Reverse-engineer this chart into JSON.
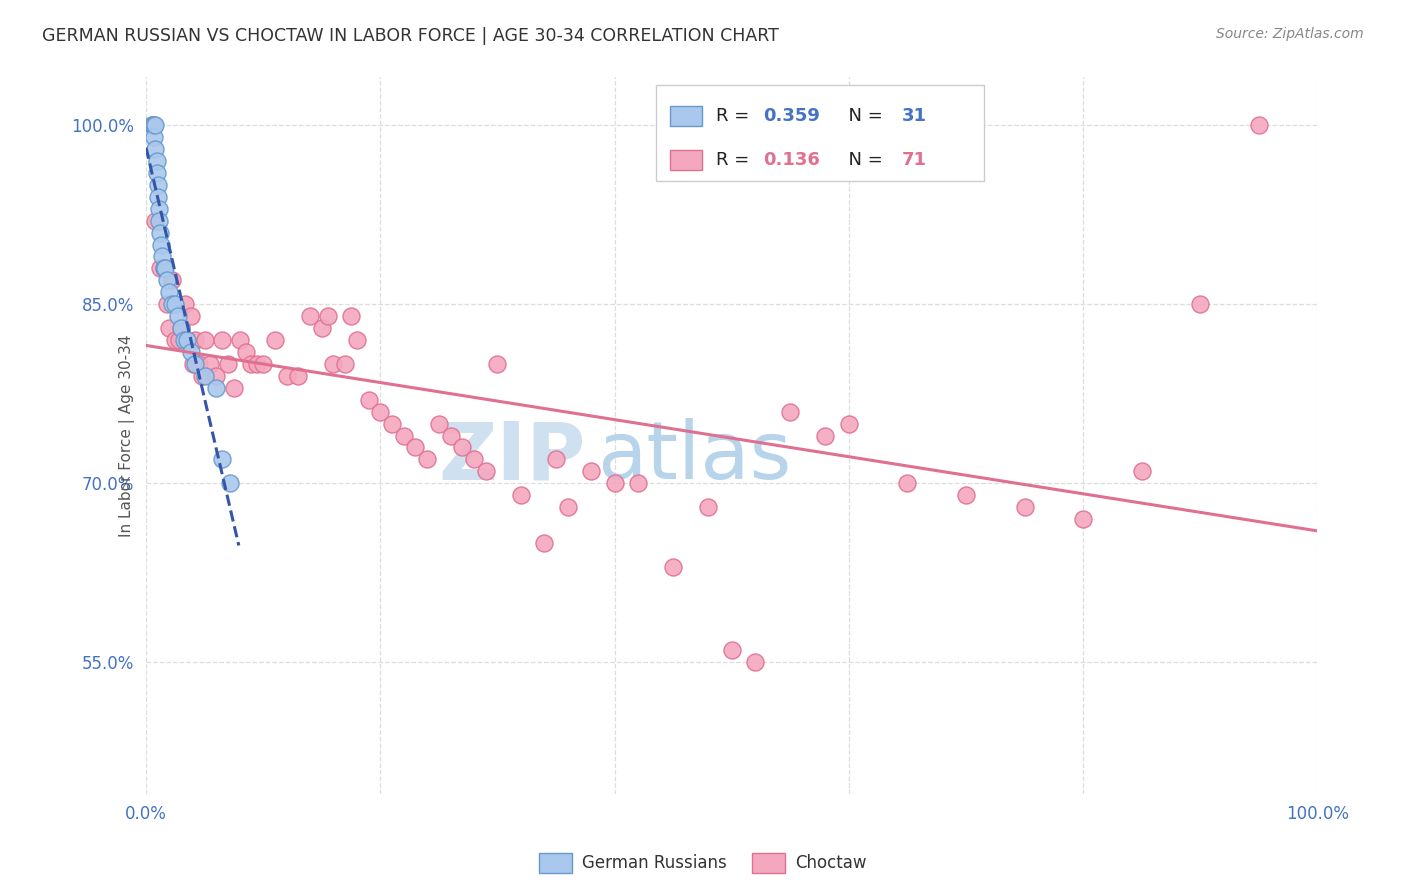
{
  "title": "GERMAN RUSSIAN VS CHOCTAW IN LABOR FORCE | AGE 30-34 CORRELATION CHART",
  "source": "Source: ZipAtlas.com",
  "ylabel": "In Labor Force | Age 30-34",
  "xlim": [
    0.0,
    1.0
  ],
  "ylim": [
    0.44,
    1.04
  ],
  "yticks": [
    0.55,
    0.7,
    0.85,
    1.0
  ],
  "ytick_labels": [
    "55.0%",
    "70.0%",
    "85.0%",
    "100.0%"
  ],
  "xtick_labels": [
    "0.0%",
    "",
    "",
    "",
    "",
    "100.0%"
  ],
  "blue_R": 0.359,
  "blue_N": 31,
  "pink_R": 0.136,
  "pink_N": 71,
  "blue_label": "German Russians",
  "pink_label": "Choctaw",
  "blue_color": "#aac8ed",
  "blue_edge_color": "#6699cc",
  "pink_color": "#f4a8bf",
  "pink_edge_color": "#e07090",
  "blue_line_color": "#3355aa",
  "pink_line_color": "#e07090",
  "watermark_zip_color": "#cfe0f0",
  "watermark_atlas_color": "#b8d4ea",
  "legend_box_color": "#ffffff",
  "legend_border_color": "#cccccc",
  "grid_color": "#dddddd",
  "axis_label_color": "#4472c4",
  "title_color": "#333333",
  "background_color": "#ffffff",
  "legend_text_color": "#333333",
  "legend_value_color": "#4472c4"
}
